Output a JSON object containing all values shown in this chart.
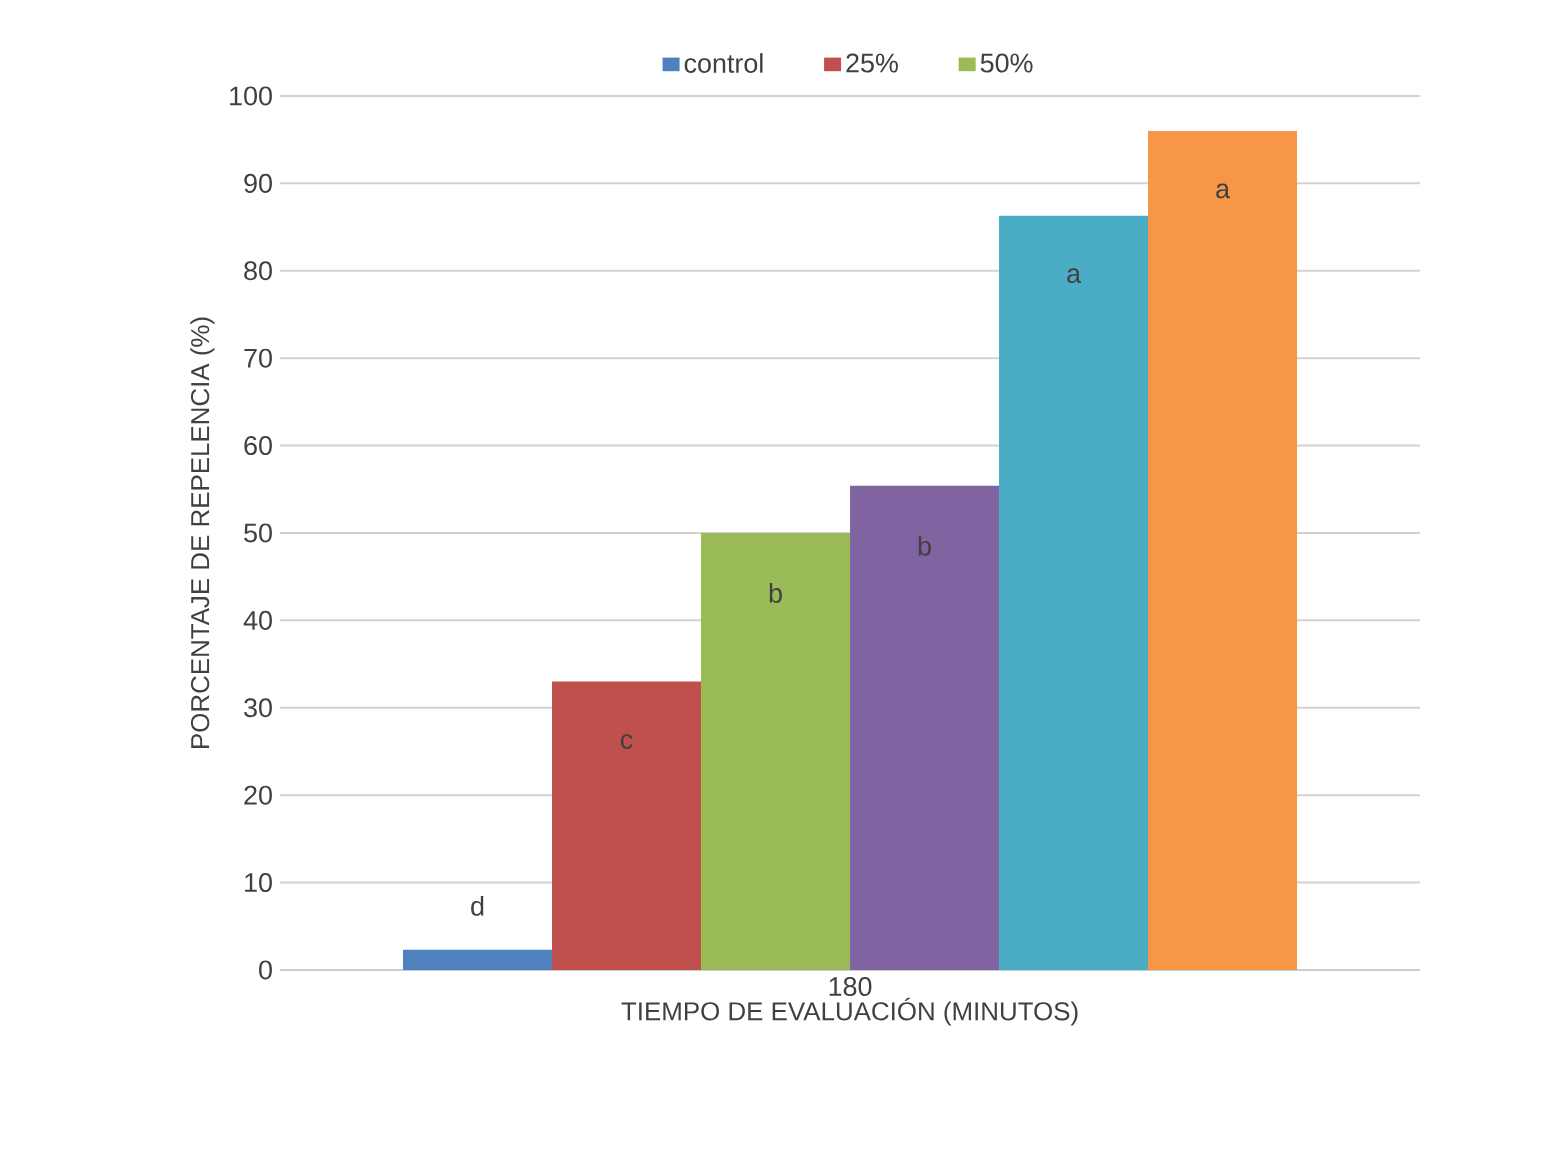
{
  "chart_data": {
    "type": "bar",
    "categories": [
      "180"
    ],
    "series": [
      {
        "name": "control",
        "color": "#4f81bd",
        "values": [
          2.3
        ]
      },
      {
        "name": "25%",
        "color": "#c0504d",
        "values": [
          33
        ]
      },
      {
        "name": "50%",
        "color": "#9bbb59",
        "values": [
          50
        ]
      },
      {
        "color": "#8064a2",
        "values": [
          55.4
        ]
      },
      {
        "color": "#4bacc6",
        "values": [
          86.3
        ]
      },
      {
        "color": "#f79646",
        "values": [
          96
        ]
      }
    ],
    "annotations": [
      "d",
      "c",
      "b",
      "b",
      "a",
      "a"
    ],
    "xlabel": "TIEMPO DE EVALUACIÓN   (MINUTOS)",
    "ylabel": "PORCENTAJE DE REPELENCIA  (%)",
    "ylim": [
      0,
      100
    ],
    "yticks": [
      0,
      10,
      20,
      30,
      40,
      50,
      60,
      70,
      80,
      90,
      100
    ],
    "grid": "y",
    "legend": "top"
  }
}
